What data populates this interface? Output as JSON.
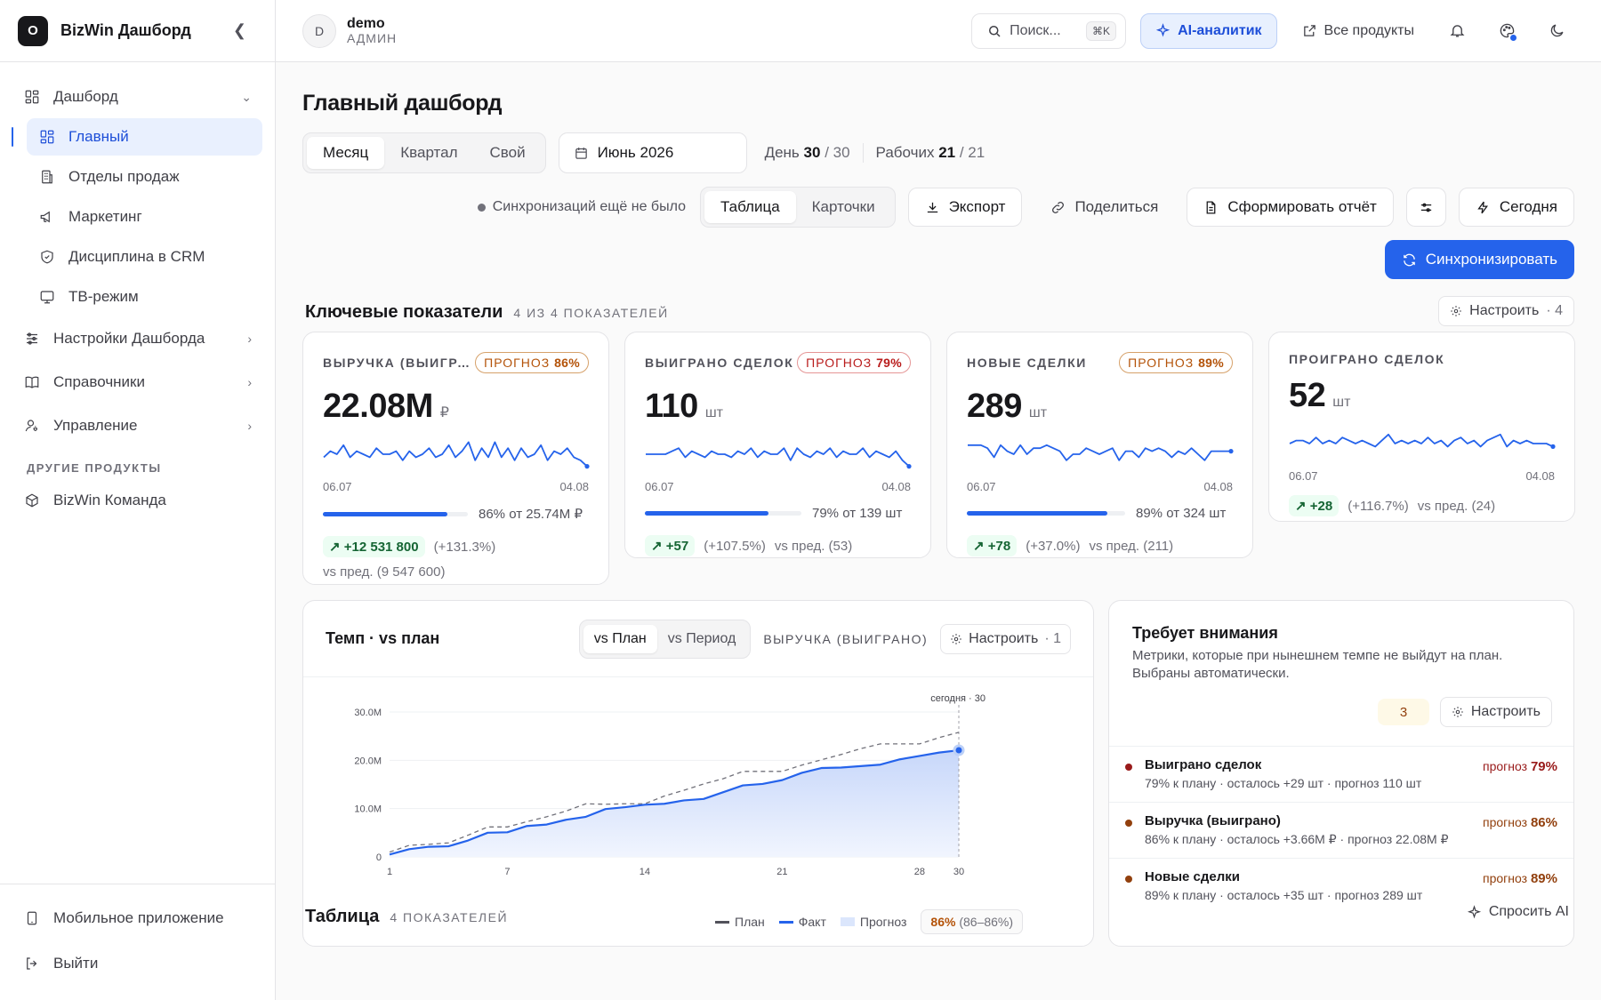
{
  "app": {
    "logo_letter": "O",
    "title": "BizWin Дашборд"
  },
  "sidebar": {
    "items": [
      {
        "label": "Дашборд",
        "icon": "dashboard-icon"
      },
      {
        "label": "Главный",
        "icon": "dashboard-icon"
      },
      {
        "label": "Отделы продаж",
        "icon": "building-icon"
      },
      {
        "label": "Маркетинг",
        "icon": "megaphone-icon"
      },
      {
        "label": "Дисциплина в CRM",
        "icon": "shield-icon"
      },
      {
        "label": "ТВ-режим",
        "icon": "tv-icon"
      },
      {
        "label": "Настройки Дашборда",
        "icon": "sliders-icon"
      },
      {
        "label": "Справочники",
        "icon": "book-icon"
      },
      {
        "label": "Управление",
        "icon": "user-cog-icon"
      }
    ],
    "group_label": "ДРУГИЕ ПРОДУКТЫ",
    "other": {
      "label": "BizWin Команда",
      "icon": "cube-icon"
    },
    "footer": [
      {
        "label": "Мобильное приложение",
        "icon": "phone-icon"
      },
      {
        "label": "Выйти",
        "icon": "logout-icon"
      }
    ]
  },
  "topbar": {
    "avatar_letter": "D",
    "user_name": "demo",
    "user_role": "АДМИН",
    "search_placeholder": "Поиск...",
    "search_kbd": "⌘K",
    "ai_label": "AI-аналитик",
    "products_label": "Все продукты"
  },
  "page": {
    "title": "Главный дашборд",
    "period_tabs": [
      "Месяц",
      "Квартал",
      "Свой"
    ],
    "period_selected": "Месяц",
    "date": "Июнь 2026",
    "day_label": "День",
    "day_current": "30",
    "day_total": "/ 30",
    "work_label": "Рабочих",
    "work_current": "21",
    "work_total": "/ 21",
    "sync_status": "Синхронизаций ещё не было",
    "view_tabs": [
      "Таблица",
      "Карточки"
    ],
    "export_label": "Экспорт",
    "share_label": "Поделиться",
    "report_label": "Сформировать отчёт",
    "today_label": "Сегодня",
    "sync_label": "Синхронизировать"
  },
  "kpi_section": {
    "title": "Ключевые показатели",
    "subtitle": "4 ИЗ 4 ПОКАЗАТЕЛЕЙ",
    "config_label": "Настроить",
    "config_count": "· 4"
  },
  "kpis": [
    {
      "label": "ВЫРУЧКА (ВЫИГРАНО)",
      "forecast_word": "ПРОГНОЗ",
      "forecast": "86%",
      "forecast_color": "#b45309",
      "value": "22.08M",
      "unit": "₽",
      "date_from": "06.07",
      "date_to": "04.08",
      "progress": 0.86,
      "progress_text": "86% от 25.74M ₽",
      "delta": "+12 531 800",
      "delta_pct": "(+131.3%)",
      "prev": "vs пред. (9 547 600)",
      "spark": [
        6,
        4,
        5,
        2,
        6,
        4,
        5,
        6,
        3,
        5,
        5,
        4,
        7,
        4,
        6,
        5,
        3,
        6,
        5,
        2,
        6,
        4,
        1,
        7,
        3,
        6,
        1,
        6,
        3,
        7,
        3,
        6,
        5,
        2,
        7,
        4,
        5,
        3,
        6,
        7,
        9
      ]
    },
    {
      "label": "ВЫИГРАНО СДЕЛОК",
      "forecast_word": "ПРОГНОЗ",
      "forecast": "79%",
      "forecast_color": "#b91c1c",
      "value": "110",
      "unit": "шт",
      "date_from": "06.07",
      "date_to": "04.08",
      "progress": 0.79,
      "progress_text": "79% от 139 шт",
      "delta": "+57",
      "delta_pct": "(+107.5%)",
      "prev": "vs пред. (53)",
      "spark": [
        5,
        5,
        5,
        5,
        4,
        3,
        6,
        4,
        5,
        6,
        4,
        5,
        5,
        6,
        4,
        5,
        3,
        6,
        4,
        5,
        5,
        3,
        7,
        3,
        5,
        6,
        4,
        5,
        3,
        6,
        4,
        5,
        5,
        3,
        6,
        4,
        5,
        6,
        4,
        7,
        9
      ]
    },
    {
      "label": "НОВЫЕ СДЕЛКИ",
      "forecast_word": "ПРОГНОЗ",
      "forecast": "89%",
      "forecast_color": "#b45309",
      "value": "289",
      "unit": "шт",
      "date_from": "06.07",
      "date_to": "04.08",
      "progress": 0.89,
      "progress_text": "89% от 324 шт",
      "delta": "+78",
      "delta_pct": "(+37.0%)",
      "prev": "vs пред. (211)",
      "spark": [
        2,
        2,
        2,
        3,
        6,
        2,
        4,
        5,
        2,
        5,
        3,
        3,
        2,
        3,
        4,
        7,
        5,
        5,
        3,
        4,
        5,
        4,
        3,
        7,
        4,
        4,
        6,
        3,
        4,
        3,
        4,
        6,
        4,
        5,
        3,
        5,
        7,
        4,
        4,
        4,
        4
      ]
    },
    {
      "label": "ПРОИГРАНО СДЕЛОК",
      "value": "52",
      "unit": "шт",
      "date_from": "06.07",
      "date_to": "04.08",
      "delta": "+28",
      "delta_pct": "(+116.7%)",
      "prev": "vs пред. (24)",
      "spark": [
        5,
        4,
        4,
        5,
        3,
        5,
        4,
        5,
        3,
        4,
        5,
        4,
        5,
        6,
        4,
        2,
        5,
        4,
        5,
        4,
        5,
        3,
        5,
        4,
        6,
        4,
        3,
        5,
        4,
        6,
        4,
        3,
        2,
        6,
        4,
        5,
        4,
        5,
        5,
        5,
        6
      ]
    }
  ],
  "tempo": {
    "title": "Темп · vs план",
    "tabs": [
      "vs План",
      "vs Период"
    ],
    "metric": "ВЫРУЧКА (ВЫИГРАНО)",
    "config_label": "Настроить",
    "config_count": "· 1",
    "today_label": "сегодня · 30",
    "legend": [
      "План",
      "Факт",
      "Прогноз"
    ],
    "pill_pct": "86%",
    "pill_range": "(86–86%)"
  },
  "chart_data": {
    "type": "line",
    "title": "Темп · vs план",
    "xlabel": "",
    "ylabel": "",
    "x_ticks": [
      "1",
      "7",
      "14",
      "21",
      "28",
      "30"
    ],
    "y_ticks": [
      "0",
      "10.0M",
      "20.0M",
      "30.0M"
    ],
    "ylim": [
      0,
      30
    ],
    "x": [
      1,
      2,
      3,
      4,
      5,
      6,
      7,
      8,
      9,
      10,
      11,
      12,
      13,
      14,
      15,
      16,
      17,
      18,
      19,
      20,
      21,
      22,
      23,
      24,
      25,
      26,
      27,
      28,
      29,
      30
    ],
    "series": [
      {
        "name": "План",
        "style": "dashed",
        "color": "#71717a",
        "values": [
          1.0,
          2.4,
          2.6,
          2.9,
          4.5,
          6.2,
          6.2,
          7.3,
          8.3,
          9.5,
          11.0,
          10.9,
          11.0,
          11.0,
          12.6,
          13.8,
          15.1,
          16.2,
          17.7,
          17.7,
          17.7,
          19.0,
          20.1,
          21.2,
          22.4,
          23.4,
          23.4,
          23.4,
          24.7,
          25.8
        ]
      },
      {
        "name": "Факт",
        "style": "solid",
        "color": "#2563eb",
        "values": [
          0.5,
          1.6,
          2.1,
          2.2,
          3.4,
          5.0,
          5.1,
          6.4,
          6.7,
          7.7,
          8.3,
          9.9,
          10.3,
          10.8,
          11.0,
          11.7,
          12.0,
          13.4,
          14.8,
          15.1,
          15.9,
          17.4,
          18.4,
          18.5,
          18.8,
          19.1,
          20.2,
          20.9,
          21.6,
          22.08
        ]
      },
      {
        "name": "Прогноз",
        "style": "area",
        "color": "#dbe6fc"
      }
    ]
  },
  "attention": {
    "title": "Требует внимания",
    "desc": "Метрики, которые при нынешнем темпе не выйдут на план. Выбраны автоматически.",
    "count": "3",
    "config_label": "Настроить",
    "items": [
      {
        "name": "Выиграно сделок",
        "sub": "79% к плану · осталось +29 шт · прогноз 110 шт",
        "fword": "прогноз",
        "fval": "79%",
        "color": "#991b1b"
      },
      {
        "name": "Выручка (выиграно)",
        "sub": "86% к плану · осталось +3.66M ₽ · прогноз 22.08M ₽",
        "fword": "прогноз",
        "fval": "86%",
        "color": "#92400e"
      },
      {
        "name": "Новые сделки",
        "sub": "89% к плану · осталось +35 шт · прогноз 289 шт",
        "fword": "прогноз",
        "fval": "89%",
        "color": "#92400e"
      }
    ]
  },
  "table_section": {
    "title": "Таблица",
    "subtitle": "4 ПОКАЗАТЕЛЕЙ",
    "ask_ai": "Спросить AI"
  }
}
